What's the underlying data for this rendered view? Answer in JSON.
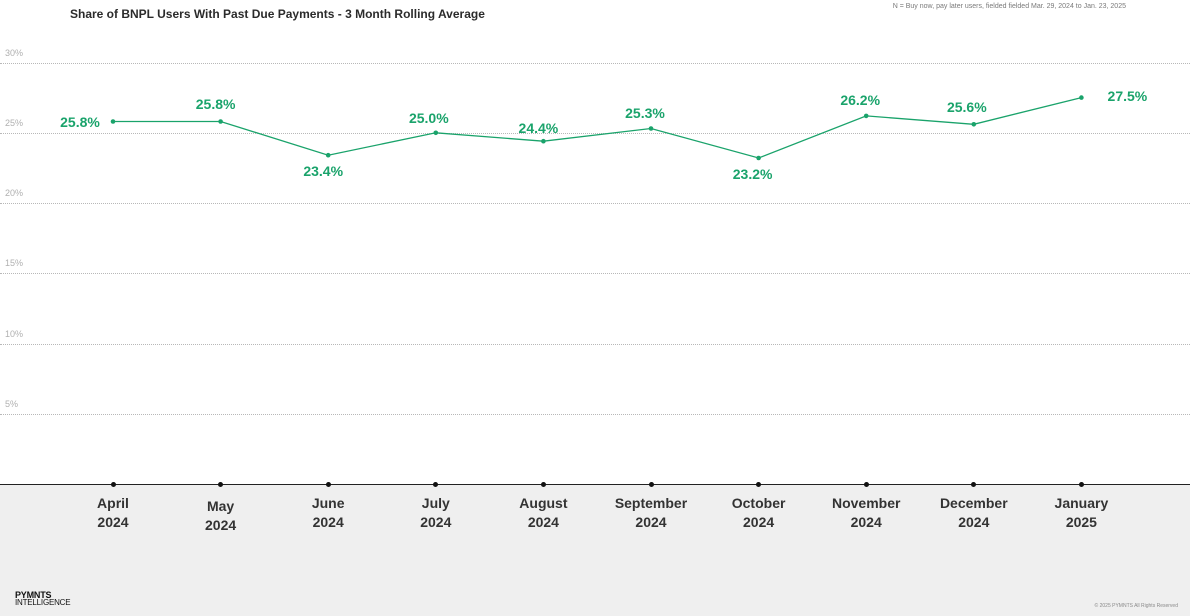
{
  "header": {
    "title": "Share of BNPL Users With Past Due Payments - 3 Month Rolling Average",
    "note": "N = Buy now, pay later users, fielded fielded Mar. 29, 2024 to Jan. 23, 2025"
  },
  "footer": {
    "logo_line1": "PYMNTS",
    "logo_line2": "INTELLIGENCE",
    "copyright": "© 2025 PYMNTS All Rights Reserved"
  },
  "colors": {
    "series": "#1aa36b",
    "baseline": "#222222",
    "footer_band": "#efefef"
  },
  "chart_data": {
    "type": "line",
    "title": "Share of BNPL Users With Past Due Payments - 3 Month Rolling Average",
    "xlabel": "",
    "ylabel": "",
    "ylim": [
      0,
      30
    ],
    "y_ticks": [
      "30%",
      "25%",
      "20%",
      "15%",
      "10%",
      "5%"
    ],
    "grid": true,
    "categories": [
      [
        "April",
        "2024"
      ],
      [
        "May",
        "2024"
      ],
      [
        "June",
        "2024"
      ],
      [
        "July",
        "2024"
      ],
      [
        "August",
        "2024"
      ],
      [
        "September",
        "2024"
      ],
      [
        "October",
        "2024"
      ],
      [
        "November",
        "2024"
      ],
      [
        "December",
        "2024"
      ],
      [
        "January",
        "2025"
      ]
    ],
    "series": [
      {
        "values": [
          25.8,
          25.8,
          23.4,
          25.0,
          24.4,
          25.3,
          23.2,
          26.2,
          25.6,
          27.5
        ],
        "labels": [
          "25.8%",
          "25.8%",
          "23.4%",
          "25.0%",
          "24.4%",
          "25.3%",
          "23.2%",
          "26.2%",
          "25.6%",
          "27.5%"
        ]
      }
    ]
  }
}
